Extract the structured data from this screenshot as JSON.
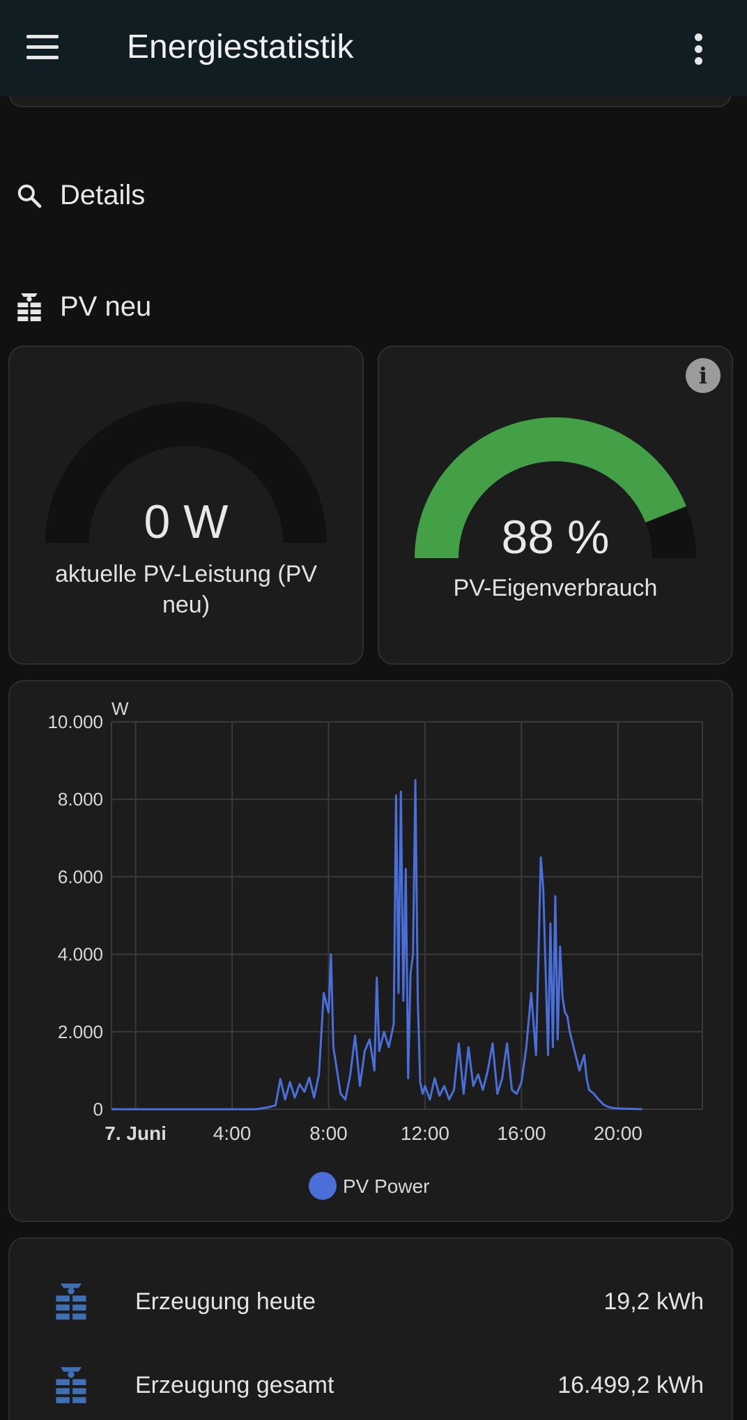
{
  "app_bar": {
    "title": "Energiestatistik",
    "menu_icon": "menu-icon",
    "more_icon": "more-vert-icon"
  },
  "sections": {
    "details": {
      "label": "Details",
      "icon": "magnify-icon"
    },
    "pv": {
      "label": "PV neu",
      "icon": "solar-panel-icon"
    }
  },
  "gauge_power": {
    "value_text": "0 W",
    "label": "aktuelle PV-Leistung (PV neu)",
    "fraction": 0.0
  },
  "gauge_selfuse": {
    "value_text": "88 %",
    "label": "PV-Eigenverbrauch",
    "fraction": 0.88,
    "color": "#43a047"
  },
  "chart_data": {
    "type": "line",
    "unit": "W",
    "ylim": [
      0,
      10000
    ],
    "y_ticks": [
      0,
      2000,
      4000,
      6000,
      8000,
      10000
    ],
    "y_tick_labels": [
      "0",
      "2.000",
      "4.000",
      "6.000",
      "8.000",
      "10.000"
    ],
    "x_tick_labels": [
      "7. Juni",
      "4:00",
      "8:00",
      "12:00",
      "16:00",
      "20:00"
    ],
    "grid": true,
    "legend_position": "bottom",
    "series": [
      {
        "name": "PV Power",
        "color": "#4a6fd8",
        "x_hours": [
          0,
          6.0,
          6.5,
          6.8,
          7.0,
          7.2,
          7.4,
          7.6,
          7.8,
          8.0,
          8.2,
          8.4,
          8.6,
          8.8,
          9.0,
          9.1,
          9.2,
          9.3,
          9.5,
          9.7,
          9.9,
          10.1,
          10.3,
          10.5,
          10.7,
          10.9,
          11.0,
          11.1,
          11.3,
          11.5,
          11.7,
          11.8,
          11.9,
          12.0,
          12.1,
          12.2,
          12.3,
          12.4,
          12.5,
          12.6,
          12.7,
          12.8,
          12.9,
          13.0,
          13.2,
          13.4,
          13.6,
          13.8,
          14.0,
          14.2,
          14.4,
          14.6,
          14.8,
          15.0,
          15.2,
          15.4,
          15.6,
          15.8,
          16.0,
          16.2,
          16.4,
          16.6,
          16.8,
          17.0,
          17.2,
          17.4,
          17.6,
          17.8,
          17.9,
          18.0,
          18.1,
          18.2,
          18.3,
          18.4,
          18.5,
          18.6,
          18.7,
          18.8,
          18.9,
          19.0,
          19.2,
          19.4,
          19.6,
          19.7,
          19.8,
          20.0,
          20.2,
          20.4,
          20.6,
          20.8,
          21.0,
          21.5,
          22.0
        ],
        "values": [
          0,
          0,
          50,
          100,
          780,
          250,
          700,
          300,
          650,
          450,
          820,
          300,
          900,
          3000,
          2500,
          4000,
          1600,
          1200,
          400,
          250,
          900,
          1900,
          600,
          1500,
          1800,
          1000,
          3400,
          1500,
          2000,
          1600,
          2200,
          8100,
          3000,
          8200,
          2800,
          6200,
          800,
          3500,
          4000,
          8500,
          2800,
          700,
          400,
          600,
          250,
          800,
          350,
          600,
          250,
          500,
          1700,
          400,
          1600,
          600,
          900,
          500,
          1000,
          1700,
          400,
          800,
          1700,
          500,
          400,
          700,
          1600,
          3000,
          1400,
          6500,
          5700,
          3600,
          1400,
          4800,
          1600,
          5500,
          1800,
          4200,
          2900,
          2500,
          2400,
          2000,
          1500,
          1000,
          1400,
          800,
          500,
          400,
          250,
          120,
          60,
          30,
          20,
          10,
          0
        ]
      }
    ]
  },
  "stats": [
    {
      "label": "Erzeugung heute",
      "value": "19,2 kWh",
      "icon": "solar-power-icon"
    },
    {
      "label": "Erzeugung gesamt",
      "value": "16.499,2 kWh",
      "icon": "solar-power-icon"
    }
  ]
}
